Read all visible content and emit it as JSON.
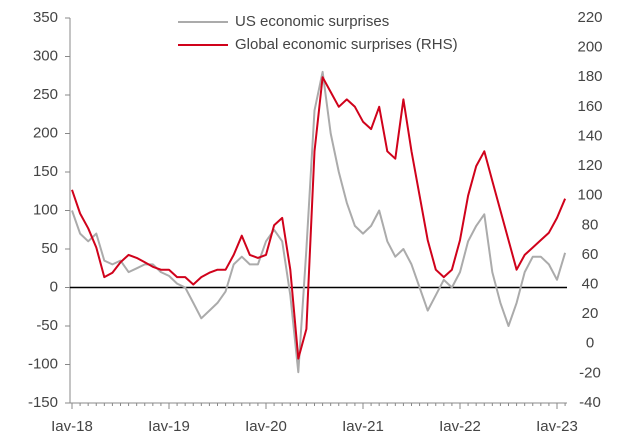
{
  "chart_data": {
    "type": "line",
    "categories": [
      "Iav-18",
      null,
      null,
      null,
      null,
      null,
      null,
      null,
      null,
      null,
      null,
      null,
      "Iav-19",
      null,
      null,
      null,
      null,
      null,
      null,
      null,
      null,
      null,
      null,
      null,
      "Iav-20",
      null,
      null,
      null,
      null,
      null,
      null,
      null,
      null,
      null,
      null,
      null,
      "Iav-21",
      null,
      null,
      null,
      null,
      null,
      null,
      null,
      null,
      null,
      null,
      null,
      "Iav-22",
      null,
      null,
      null,
      null,
      null,
      null,
      null,
      null,
      null,
      null,
      null,
      "Iav-23",
      null
    ],
    "series": [
      {
        "name": "US economic surprises",
        "color": "#ababab",
        "values": [
          100,
          70,
          60,
          70,
          35,
          30,
          35,
          20,
          25,
          30,
          30,
          20,
          15,
          5,
          0,
          -20,
          -40,
          -30,
          -20,
          -5,
          30,
          40,
          30,
          30,
          60,
          75,
          60,
          -10,
          -110,
          50,
          230,
          280,
          200,
          150,
          110,
          80,
          70,
          80,
          100,
          60,
          40,
          50,
          30,
          0,
          -30,
          -10,
          10,
          0,
          20,
          60,
          80,
          95,
          20,
          -20,
          -50,
          -20,
          20,
          40,
          40,
          30,
          10,
          45
        ]
      },
      {
        "name": "Global economic surprises (RHS)",
        "color": "#d0021b",
        "axis": "y2",
        "values": [
          104,
          88,
          78,
          65,
          45,
          48,
          55,
          60,
          58,
          55,
          52,
          50,
          50,
          45,
          45,
          40,
          45,
          48,
          50,
          50,
          60,
          73,
          60,
          58,
          60,
          80,
          85,
          50,
          -10,
          10,
          130,
          180,
          170,
          160,
          165,
          160,
          150,
          145,
          160,
          130,
          125,
          165,
          130,
          100,
          70,
          50,
          45,
          50,
          70,
          100,
          120,
          130,
          110,
          90,
          70,
          50,
          60,
          65,
          70,
          75,
          85,
          98
        ]
      }
    ],
    "ylim": [
      -150,
      350
    ],
    "yticks": [
      -150,
      -100,
      -50,
      0,
      50,
      100,
      150,
      200,
      250,
      300,
      350
    ],
    "y2lim": [
      -40,
      220
    ],
    "y2ticks": [
      -40,
      -20,
      0,
      20,
      40,
      60,
      80,
      100,
      120,
      140,
      160,
      180,
      200,
      220
    ],
    "legend": "top"
  }
}
